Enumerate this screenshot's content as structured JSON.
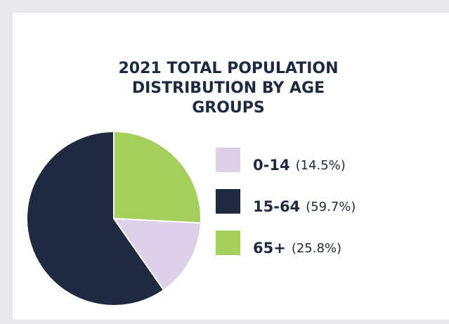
{
  "chart_data": {
    "type": "pie",
    "title": "2021 TOTAL POPULATION DISTRIBUTION BY AGE GROUPS",
    "categories": [
      "0-14",
      "15-64",
      "65+"
    ],
    "values": [
      14.5,
      59.7,
      25.8
    ],
    "value_labels": [
      "(14.5%)",
      "(59.7%)",
      "(25.8%)"
    ],
    "colors": [
      "#dcd1e8",
      "#1e2a40",
      "#a3cf5a"
    ]
  }
}
